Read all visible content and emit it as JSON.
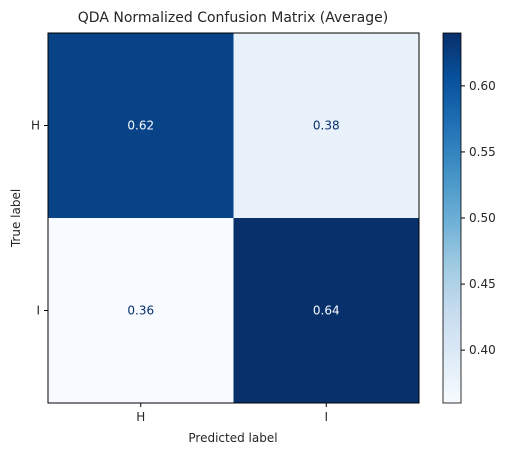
{
  "chart_data": {
    "type": "heatmap",
    "title": "QDA Normalized Confusion Matrix (Average)",
    "xlabel": "Predicted label",
    "ylabel": "True label",
    "x_categories": [
      "H",
      "I"
    ],
    "y_categories": [
      "H",
      "I"
    ],
    "values": [
      [
        0.62,
        0.38
      ],
      [
        0.36,
        0.64
      ]
    ],
    "cell_labels": [
      [
        "0.62",
        "0.38"
      ],
      [
        "0.36",
        "0.64"
      ]
    ],
    "colormap": "Blues",
    "colorbar": {
      "range": [
        0.36,
        0.64
      ],
      "ticks": [
        0.4,
        0.45,
        0.5,
        0.55,
        0.6
      ],
      "tick_labels": [
        "0.40",
        "0.45",
        "0.50",
        "0.55",
        "0.60"
      ]
    },
    "grid": false
  },
  "colors": {
    "low": "#f7fbff",
    "high": "#08306b",
    "text_on_dark": "#f7fbff",
    "text_on_light": "#08306b"
  }
}
